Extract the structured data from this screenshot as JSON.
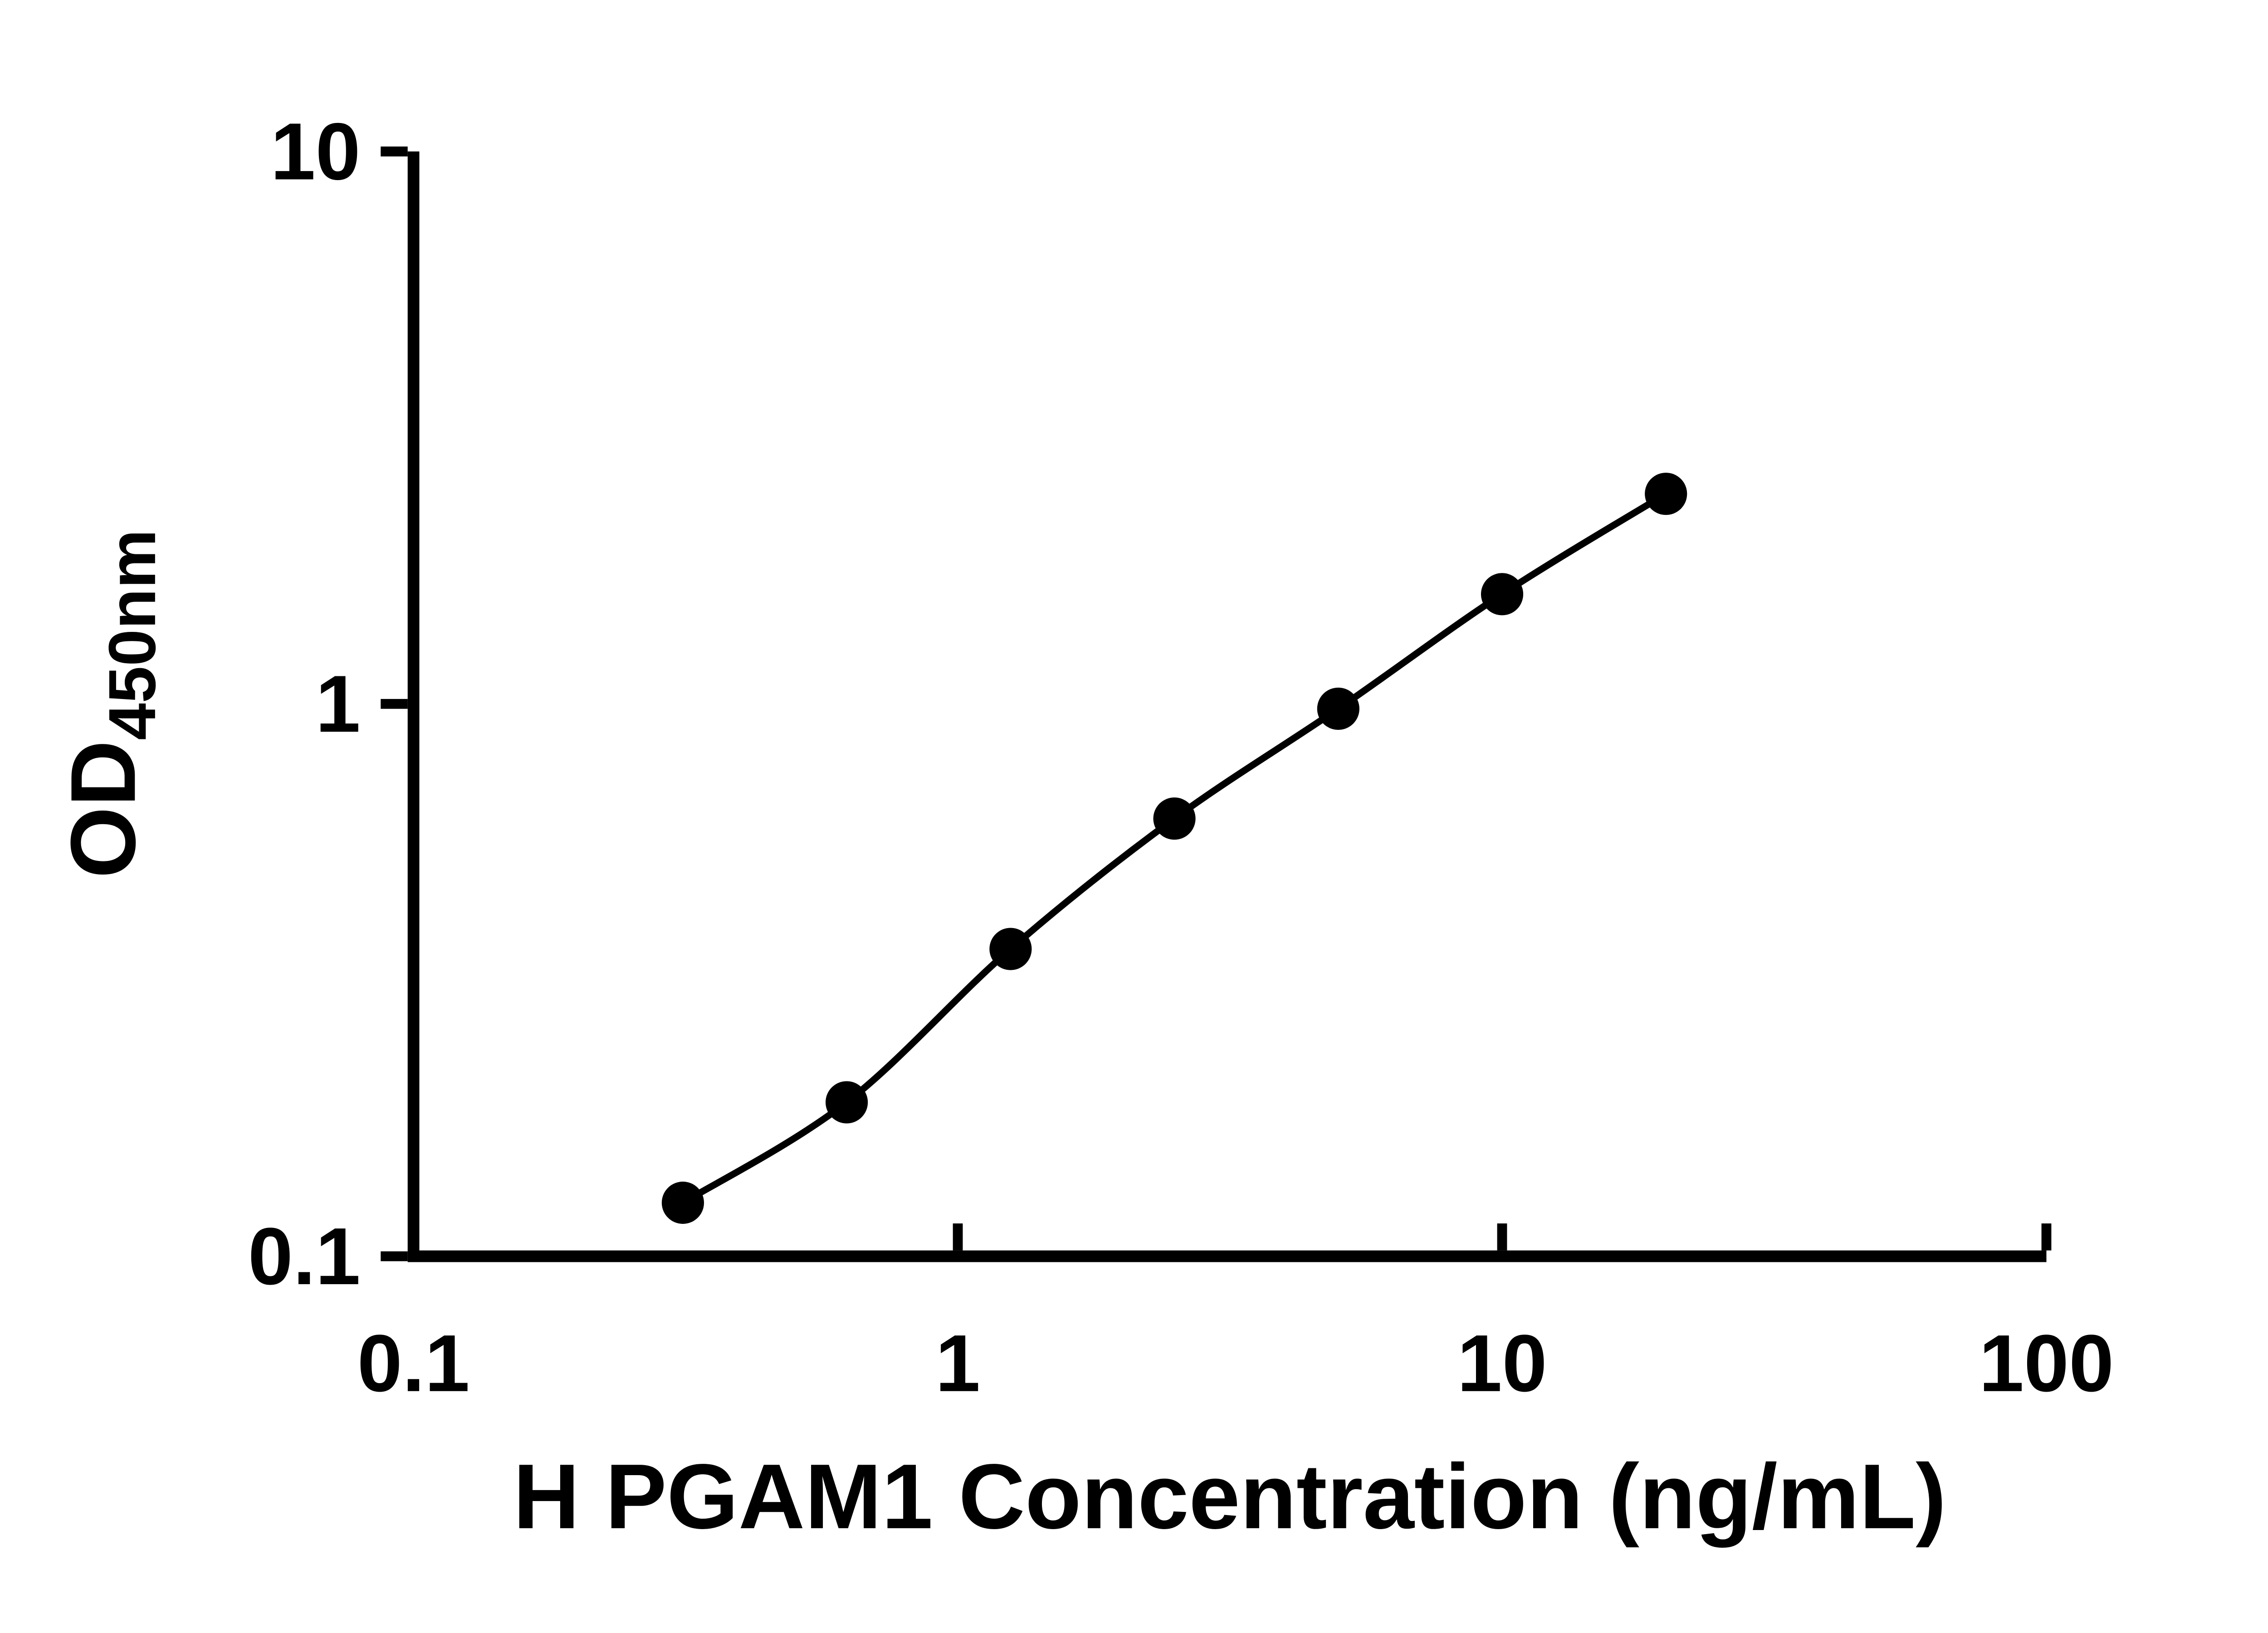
{
  "page": {
    "background_color": "#ffffff"
  },
  "chart_data": {
    "type": "scatter",
    "subtype": "standard-curve-with-fit-line",
    "title": "",
    "xlabel": "H PGAM1 Concentration (ng/mL)",
    "ylabel_main": "OD",
    "ylabel_sub": "450nm",
    "x_scale": "log",
    "y_scale": "log",
    "xlim": [
      0.1,
      100
    ],
    "ylim": [
      0.1,
      10
    ],
    "x_tick_values": [
      0.1,
      1,
      10,
      100
    ],
    "x_tick_labels": [
      "0.1",
      "1",
      "10",
      "100"
    ],
    "y_tick_values": [
      0.1,
      1,
      10
    ],
    "y_tick_labels": [
      "0.1",
      "1",
      "10"
    ],
    "grid": false,
    "legend_position": "none",
    "marker_color": "#000000",
    "line_color": "#000000",
    "axis_color": "#000000",
    "points": [
      {
        "x": 0.3125,
        "y": 0.125
      },
      {
        "x": 0.625,
        "y": 0.19
      },
      {
        "x": 1.25,
        "y": 0.36
      },
      {
        "x": 2.5,
        "y": 0.62
      },
      {
        "x": 5,
        "y": 0.98
      },
      {
        "x": 10,
        "y": 1.58
      },
      {
        "x": 20,
        "y": 2.4
      }
    ]
  }
}
